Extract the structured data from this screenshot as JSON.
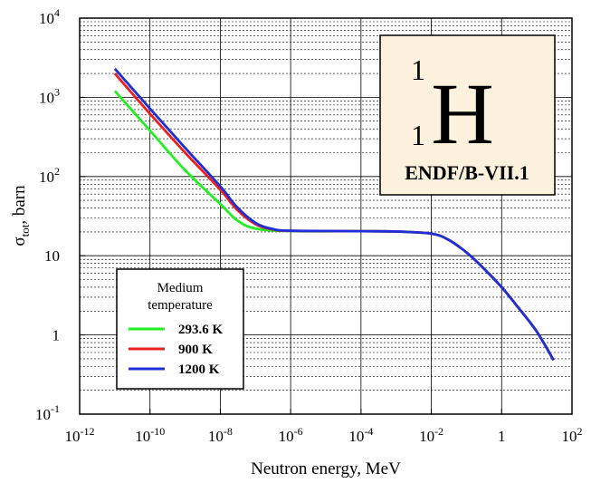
{
  "chart_data": {
    "type": "line",
    "xscale": "log",
    "yscale": "log",
    "xlim": [
      1e-12,
      100
    ],
    "ylim": [
      0.1,
      10000
    ],
    "xlabel": "Neutron energy, MeV",
    "ylabel_main": "σ",
    "ylabel_sub": "tot",
    "ylabel_rest": ", barn",
    "xticks": [
      {
        "value": 1e-12,
        "base": "10",
        "exp": "-12"
      },
      {
        "value": 1e-10,
        "base": "10",
        "exp": "-10"
      },
      {
        "value": 1e-08,
        "base": "10",
        "exp": "-8"
      },
      {
        "value": 1e-06,
        "base": "10",
        "exp": "-6"
      },
      {
        "value": 0.0001,
        "base": "10",
        "exp": "-4"
      },
      {
        "value": 0.01,
        "base": "10",
        "exp": "-2"
      },
      {
        "value": 1,
        "base": "1",
        "exp": ""
      },
      {
        "value": 100,
        "base": "10",
        "exp": "2"
      }
    ],
    "yticks": [
      {
        "value": 10000,
        "base": "10",
        "exp": "4"
      },
      {
        "value": 1000,
        "base": "10",
        "exp": "3"
      },
      {
        "value": 100,
        "base": "10",
        "exp": "2"
      },
      {
        "value": 10,
        "base": "10",
        "exp": ""
      },
      {
        "value": 1,
        "base": "1",
        "exp": ""
      },
      {
        "value": 0.1,
        "base": "10",
        "exp": "-1"
      }
    ],
    "grid": true,
    "legend_placement": "bottom-left",
    "legend_title_line1": "Medium",
    "legend_title_line2": "temperature",
    "series": [
      {
        "name": "293.6 K",
        "color": "#22ee22",
        "points": [
          [
            1e-11,
            1200
          ],
          [
            1e-10,
            380
          ],
          [
            1e-09,
            120
          ],
          [
            1e-08,
            45
          ],
          [
            3e-08,
            28
          ],
          [
            1e-07,
            22
          ],
          [
            1e-06,
            20.5
          ],
          [
            0.0001,
            20.4
          ],
          [
            0.001,
            20.2
          ],
          [
            0.01,
            19
          ],
          [
            0.03,
            16
          ],
          [
            0.1,
            11
          ],
          [
            0.3,
            7
          ],
          [
            1,
            4
          ],
          [
            3,
            2.2
          ],
          [
            10,
            1.1
          ],
          [
            30,
            0.48
          ]
        ]
      },
      {
        "name": "900 K",
        "color": "#e82020",
        "points": [
          [
            1e-11,
            2000
          ],
          [
            1e-10,
            620
          ],
          [
            1e-09,
            200
          ],
          [
            1e-08,
            68
          ],
          [
            3e-08,
            38
          ],
          [
            1e-07,
            25
          ],
          [
            3e-07,
            21.5
          ],
          [
            1e-06,
            20.6
          ],
          [
            0.0001,
            20.4
          ],
          [
            0.001,
            20.2
          ],
          [
            0.01,
            19
          ],
          [
            0.03,
            16
          ],
          [
            0.1,
            11
          ],
          [
            0.3,
            7
          ],
          [
            1,
            4
          ],
          [
            3,
            2.2
          ],
          [
            10,
            1.1
          ],
          [
            30,
            0.48
          ]
        ]
      },
      {
        "name": "1200 K",
        "color": "#1f2fd8",
        "points": [
          [
            1e-11,
            2300
          ],
          [
            1e-10,
            720
          ],
          [
            1e-09,
            230
          ],
          [
            1e-08,
            75
          ],
          [
            3e-08,
            41
          ],
          [
            1e-07,
            26
          ],
          [
            3e-07,
            21.8
          ],
          [
            1e-06,
            20.7
          ],
          [
            0.0001,
            20.4
          ],
          [
            0.001,
            20.2
          ],
          [
            0.01,
            19
          ],
          [
            0.03,
            16
          ],
          [
            0.1,
            11
          ],
          [
            0.3,
            7
          ],
          [
            1,
            4
          ],
          [
            3,
            2.2
          ],
          [
            10,
            1.1
          ],
          [
            30,
            0.48
          ]
        ]
      }
    ],
    "element_label": {
      "mass_number": "1",
      "atomic_number": "1",
      "symbol": "H",
      "library": "ENDF/B-VII.1"
    }
  }
}
